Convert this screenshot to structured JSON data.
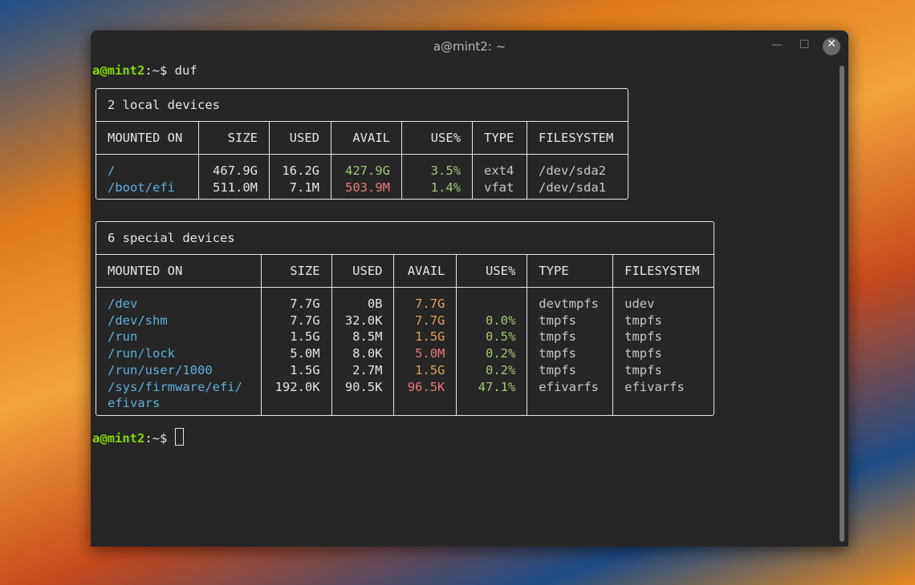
{
  "window": {
    "title": "a@mint2: ~",
    "minimize_icon": "minimize-icon",
    "maximize_icon": "maximize-icon",
    "close_icon": "close-icon"
  },
  "prompt": {
    "user_host": "a@mint2",
    "path": ":~$ ",
    "command": "duf"
  },
  "colors": {
    "prompt": "#87d700",
    "mount": "#5fafd7",
    "ok": "#a0c87a",
    "warn": "#e0a060",
    "bad": "#e87878"
  },
  "local": {
    "title": "2 local devices",
    "headers": [
      "MOUNTED ON",
      "SIZE",
      "USED",
      "AVAIL",
      "USE%",
      "TYPE",
      "FILESYSTEM"
    ],
    "rows": [
      {
        "mount": "/",
        "size": "467.9G",
        "used": "16.2G",
        "avail": "427.9G",
        "avail_color": "green",
        "use": "3.5%",
        "type": "ext4",
        "fs": "/dev/sda2"
      },
      {
        "mount": "/boot/efi",
        "size": "511.0M",
        "used": "7.1M",
        "avail": "503.9M",
        "avail_color": "red",
        "use": "1.4%",
        "type": "vfat",
        "fs": "/dev/sda1"
      }
    ]
  },
  "special": {
    "title": "6 special devices",
    "headers": [
      "MOUNTED ON",
      "SIZE",
      "USED",
      "AVAIL",
      "USE%",
      "TYPE",
      "FILESYSTEM"
    ],
    "rows": [
      {
        "mount": "/dev",
        "size": "7.7G",
        "used": "0B",
        "avail": "7.7G",
        "avail_color": "orange",
        "use": "",
        "type": "devtmpfs",
        "fs": "udev"
      },
      {
        "mount": "/dev/shm",
        "size": "7.7G",
        "used": "32.0K",
        "avail": "7.7G",
        "avail_color": "orange",
        "use": "0.0%",
        "type": "tmpfs",
        "fs": "tmpfs"
      },
      {
        "mount": "/run",
        "size": "1.5G",
        "used": "8.5M",
        "avail": "1.5G",
        "avail_color": "orange",
        "use": "0.5%",
        "type": "tmpfs",
        "fs": "tmpfs"
      },
      {
        "mount": "/run/lock",
        "size": "5.0M",
        "used": "8.0K",
        "avail": "5.0M",
        "avail_color": "red",
        "use": "0.2%",
        "type": "tmpfs",
        "fs": "tmpfs"
      },
      {
        "mount": "/run/user/1000",
        "size": "1.5G",
        "used": "2.7M",
        "avail": "1.5G",
        "avail_color": "orange",
        "use": "0.2%",
        "type": "tmpfs",
        "fs": "tmpfs"
      },
      {
        "mount": "/sys/firmware/efi/\nefivars",
        "size": "192.0K",
        "used": "90.5K",
        "avail": "96.5K",
        "avail_color": "red",
        "use": "47.1%",
        "type": "efivarfs",
        "fs": "efivarfs"
      }
    ]
  }
}
